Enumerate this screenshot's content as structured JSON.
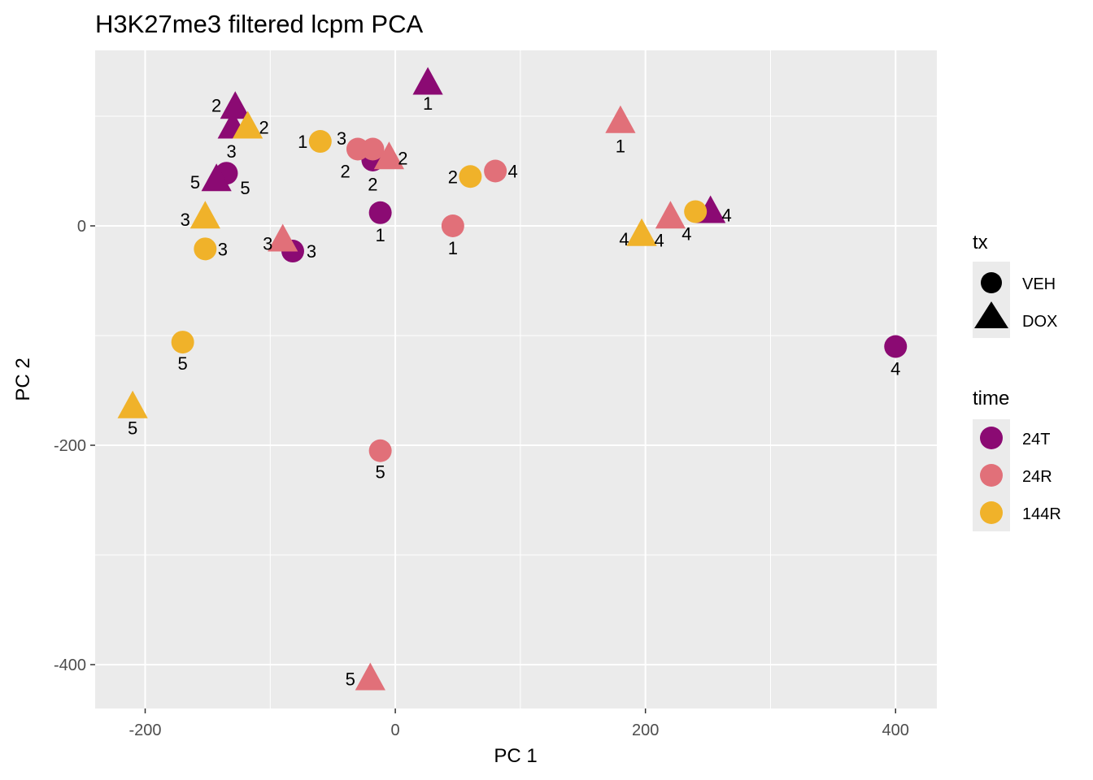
{
  "chart_data": {
    "type": "scatter",
    "title": "H3K27me3 filtered lcpm PCA",
    "xlabel": "PC 1",
    "ylabel": "PC 2",
    "xlim": [
      -240,
      433
    ],
    "ylim": [
      -440,
      160
    ],
    "x_ticks": [
      -200,
      0,
      200,
      400
    ],
    "x_tick_labels": [
      "-200",
      "0",
      "200",
      "400"
    ],
    "y_ticks": [
      -400,
      -200,
      0
    ],
    "y_tick_labels": [
      "-400",
      "-200",
      "0"
    ],
    "grid": true,
    "legend_position": "right",
    "shape_legend": {
      "title": "tx",
      "items": [
        {
          "label": "VEH",
          "shape": "circle"
        },
        {
          "label": "DOX",
          "shape": "triangle"
        }
      ]
    },
    "color_legend": {
      "title": "time",
      "items": [
        {
          "label": "24T",
          "color": "#8B0A73"
        },
        {
          "label": "24R",
          "color": "#E17079"
        },
        {
          "label": "144R",
          "color": "#F0B22A"
        }
      ]
    },
    "points": [
      {
        "x": 26,
        "y": 130,
        "tx": "DOX",
        "time": "24T",
        "label": "1",
        "lx": 26,
        "ly": 112
      },
      {
        "x": -128,
        "y": 108,
        "tx": "DOX",
        "time": "24T",
        "label": "2",
        "lx": -143,
        "ly": 110
      },
      {
        "x": -130,
        "y": 90,
        "tx": "DOX",
        "time": "24T",
        "label": "3",
        "lx": -131,
        "ly": 68
      },
      {
        "x": -135,
        "y": 48,
        "tx": "VEH",
        "time": "24T",
        "label": "5",
        "lx": -120,
        "ly": 35
      },
      {
        "x": -143,
        "y": 42,
        "tx": "DOX",
        "time": "24T",
        "label": "5",
        "lx": -160,
        "ly": 40
      },
      {
        "x": -12,
        "y": 12,
        "tx": "VEH",
        "time": "24T",
        "label": "1",
        "lx": -12,
        "ly": -8
      },
      {
        "x": -18,
        "y": 60,
        "tx": "VEH",
        "time": "24T",
        "label": "2",
        "lx": -18,
        "ly": 38
      },
      {
        "x": -82,
        "y": -23,
        "tx": "VEH",
        "time": "24T",
        "label": "3",
        "lx": -67,
        "ly": -23
      },
      {
        "x": 400,
        "y": -110,
        "tx": "VEH",
        "time": "24T",
        "label": "4",
        "lx": 400,
        "ly": -130
      },
      {
        "x": 252,
        "y": 13,
        "tx": "DOX",
        "time": "24T",
        "label": "4",
        "lx": 265,
        "ly": 10
      },
      {
        "x": 180,
        "y": 95,
        "tx": "DOX",
        "time": "24R",
        "label": "1",
        "lx": 180,
        "ly": 73
      },
      {
        "x": -30,
        "y": 70,
        "tx": "VEH",
        "time": "24R",
        "label": "3",
        "lx": -43,
        "ly": 80
      },
      {
        "x": -18,
        "y": 70,
        "tx": "VEH",
        "time": "24R",
        "label": "2",
        "lx": -40,
        "ly": 50
      },
      {
        "x": -5,
        "y": 62,
        "tx": "DOX",
        "time": "24R",
        "label": "2",
        "lx": 6,
        "ly": 62
      },
      {
        "x": 80,
        "y": 50,
        "tx": "VEH",
        "time": "24R",
        "label": "4",
        "lx": 94,
        "ly": 50
      },
      {
        "x": 46,
        "y": 0,
        "tx": "VEH",
        "time": "24R",
        "label": "1",
        "lx": 46,
        "ly": -20
      },
      {
        "x": -90,
        "y": -13,
        "tx": "DOX",
        "time": "24R",
        "label": "3",
        "lx": -102,
        "ly": -16
      },
      {
        "x": 220,
        "y": 8,
        "tx": "DOX",
        "time": "24R",
        "label": "4",
        "lx": 233,
        "ly": -7
      },
      {
        "x": -12,
        "y": -205,
        "tx": "VEH",
        "time": "24R",
        "label": "5",
        "lx": -12,
        "ly": -224
      },
      {
        "x": -20,
        "y": -413,
        "tx": "DOX",
        "time": "24R",
        "label": "5",
        "lx": -36,
        "ly": -413
      },
      {
        "x": -118,
        "y": 90,
        "tx": "DOX",
        "time": "144R",
        "label": "2",
        "lx": -105,
        "ly": 90
      },
      {
        "x": -60,
        "y": 77,
        "tx": "VEH",
        "time": "144R",
        "label": "1",
        "lx": -74,
        "ly": 77
      },
      {
        "x": 60,
        "y": 45,
        "tx": "VEH",
        "time": "144R",
        "label": "2",
        "lx": 46,
        "ly": 45
      },
      {
        "x": -152,
        "y": 8,
        "tx": "DOX",
        "time": "144R",
        "label": "3",
        "lx": -168,
        "ly": 6
      },
      {
        "x": -152,
        "y": -21,
        "tx": "VEH",
        "time": "144R",
        "label": "3",
        "lx": -138,
        "ly": -21
      },
      {
        "x": -170,
        "y": -106,
        "tx": "VEH",
        "time": "144R",
        "label": "5",
        "lx": -170,
        "ly": -125
      },
      {
        "x": -210,
        "y": -165,
        "tx": "DOX",
        "time": "144R",
        "label": "5",
        "lx": -210,
        "ly": -184
      },
      {
        "x": 197,
        "y": -8,
        "tx": "DOX",
        "time": "144R",
        "label": "4",
        "lx": 183,
        "ly": -12
      },
      {
        "x": 240,
        "y": 13,
        "tx": "VEH",
        "time": "144R",
        "label": "4",
        "lx": 211,
        "ly": -13
      }
    ]
  }
}
